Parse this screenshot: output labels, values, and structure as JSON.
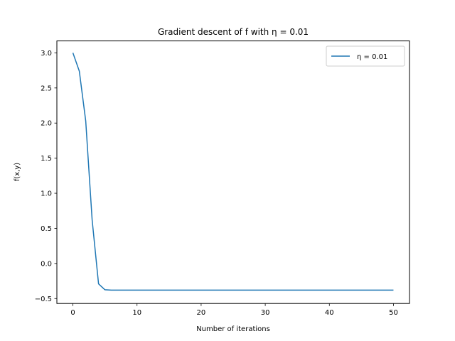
{
  "chart_data": {
    "type": "line",
    "title": "Gradient descent of f with η =  0.01",
    "xlabel": "Number of iterations",
    "ylabel": "f(x,y)",
    "xlim": [
      -2.5,
      52.5
    ],
    "ylim": [
      -0.57,
      3.17
    ],
    "xticks": [
      0,
      10,
      20,
      30,
      40,
      50
    ],
    "yticks": [
      -0.5,
      0.0,
      0.5,
      1.0,
      1.5,
      2.0,
      2.5,
      3.0
    ],
    "ytick_labels": [
      "−0.5",
      "0.0",
      "0.5",
      "1.0",
      "1.5",
      "2.0",
      "2.5",
      "3.0"
    ],
    "grid": false,
    "legend_position": "upper right",
    "series": [
      {
        "name": "η = 0.01",
        "color": "#1f77b4",
        "x": [
          0,
          1,
          2,
          3,
          4,
          5,
          6,
          7,
          8,
          9,
          10,
          11,
          12,
          13,
          14,
          15,
          16,
          17,
          18,
          19,
          20,
          21,
          22,
          23,
          24,
          25,
          26,
          27,
          28,
          29,
          30,
          31,
          32,
          33,
          34,
          35,
          36,
          37,
          38,
          39,
          40,
          41,
          42,
          43,
          44,
          45,
          46,
          47,
          48,
          49,
          50
        ],
        "y": [
          3.0,
          2.74,
          2.03,
          0.62,
          -0.29,
          -0.375,
          -0.38,
          -0.38,
          -0.38,
          -0.38,
          -0.38,
          -0.38,
          -0.38,
          -0.38,
          -0.38,
          -0.38,
          -0.38,
          -0.38,
          -0.38,
          -0.38,
          -0.38,
          -0.38,
          -0.38,
          -0.38,
          -0.38,
          -0.38,
          -0.38,
          -0.38,
          -0.38,
          -0.38,
          -0.38,
          -0.38,
          -0.38,
          -0.38,
          -0.38,
          -0.38,
          -0.38,
          -0.38,
          -0.38,
          -0.38,
          -0.38,
          -0.38,
          -0.38,
          -0.38,
          -0.38,
          -0.38,
          -0.38,
          -0.38,
          -0.38,
          -0.38,
          -0.38
        ]
      }
    ]
  }
}
